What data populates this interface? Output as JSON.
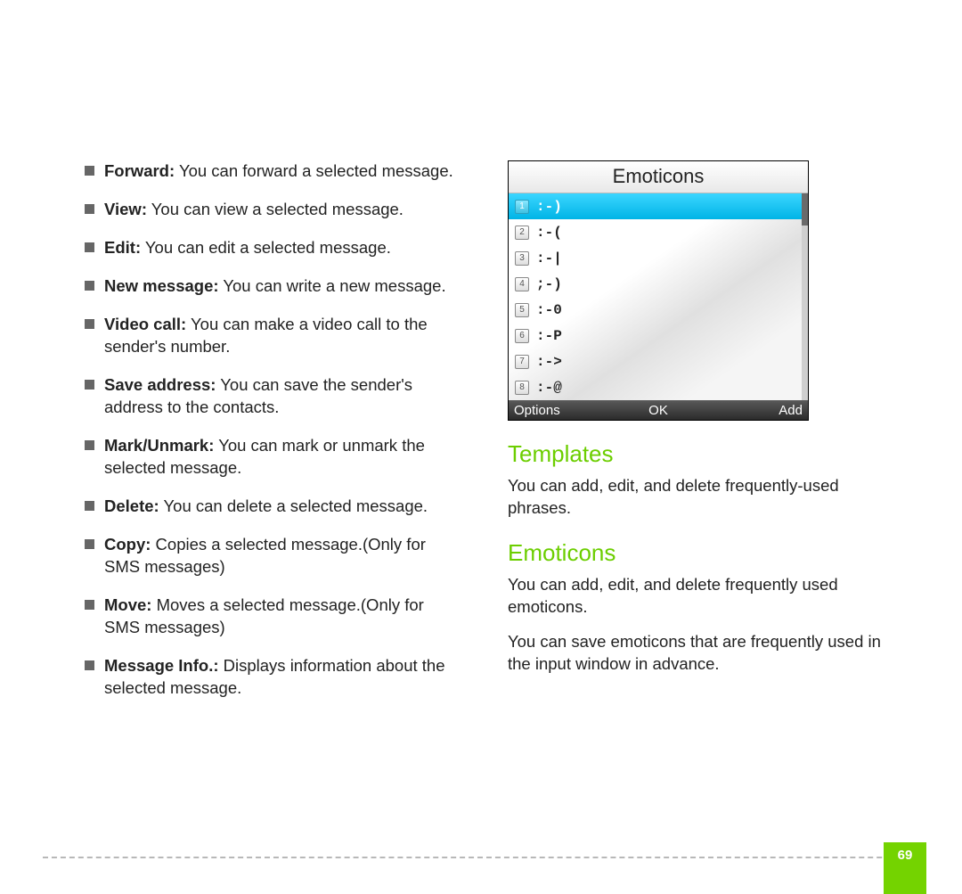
{
  "colors": {
    "accent_green": "#6cce00",
    "bullet_gray": "#666666",
    "text": "#222222",
    "footer_dash": "#b8b8b8",
    "pagenum_bg": "#74d300",
    "phone_highlight": "#00b4e6",
    "softkey_bg": "#3a3a3a"
  },
  "left": {
    "items": [
      {
        "term": "Forward:",
        "desc": " You can forward a selected message."
      },
      {
        "term": "View:",
        "desc": " You can view a selected message."
      },
      {
        "term": "Edit:",
        "desc": " You can edit a selected message."
      },
      {
        "term": "New message:",
        "desc": " You can write a new message."
      },
      {
        "term": "Video call:",
        "desc": " You can make a video call to the sender's number."
      },
      {
        "term": "Save address:",
        "desc": " You can save the sender's address to the contacts."
      },
      {
        "term": "Mark/Unmark:",
        "desc": " You can mark or unmark the selected message."
      },
      {
        "term": "Delete:",
        "desc": " You can delete a selected message."
      },
      {
        "term": "Copy:",
        "desc": " Copies a selected message.(Only for SMS messages)"
      },
      {
        "term": "Move:",
        "desc": " Moves a selected message.(Only for SMS messages)"
      },
      {
        "term": "Message Info.:",
        "desc": " Displays information about the selected message."
      }
    ]
  },
  "phone": {
    "title": "Emoticons",
    "rows": [
      {
        "n": "1",
        "face": ":-)",
        "selected": true
      },
      {
        "n": "2",
        "face": ":-(",
        "selected": false
      },
      {
        "n": "3",
        "face": ":-|",
        "selected": false
      },
      {
        "n": "4",
        "face": ";-)",
        "selected": false
      },
      {
        "n": "5",
        "face": ":-0",
        "selected": false
      },
      {
        "n": "6",
        "face": ":-P",
        "selected": false
      },
      {
        "n": "7",
        "face": ":->",
        "selected": false
      },
      {
        "n": "8",
        "face": ":-@",
        "selected": false
      }
    ],
    "softkeys": {
      "left": "Options",
      "center": "OK",
      "right": "Add"
    }
  },
  "sections": {
    "templates": {
      "heading": "Templates",
      "p1": "You can add, edit, and delete frequently-used phrases."
    },
    "emoticons": {
      "heading": "Emoticons",
      "p1": "You can add, edit, and delete frequently used emoticons.",
      "p2": "You can save emoticons that are frequently used in the input window in advance."
    }
  },
  "page_number": "69"
}
